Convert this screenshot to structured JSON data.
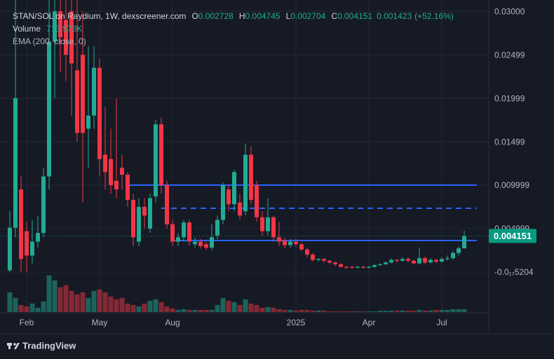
{
  "chart_data": {
    "type": "candlestick",
    "legend": {
      "title": "STAN/SOL on Raydium, 1W, dexscreener.com",
      "ohlc_keys": [
        "O",
        "H",
        "L",
        "C"
      ],
      "volume_title": "Volume",
      "volume_value_label": "713.573K",
      "ema_title": "EMA (200, close, 0)"
    },
    "change": {
      "value": 0.001423,
      "percent_label": "(+52.16%)"
    },
    "branding": "TradingView",
    "categories": [
      null,
      null,
      null,
      "Feb",
      null,
      null,
      null,
      null,
      null,
      null,
      null,
      null,
      null,
      null,
      null,
      null,
      "May",
      null,
      null,
      null,
      null,
      null,
      null,
      null,
      null,
      null,
      null,
      null,
      null,
      "Aug",
      null,
      null,
      null,
      null,
      null,
      null,
      null,
      null,
      null,
      null,
      null,
      null,
      null,
      null,
      null,
      null,
      null,
      null,
      null,
      null,
      null,
      "2025",
      null,
      null,
      null,
      null,
      null,
      null,
      null,
      null,
      null,
      null,
      null,
      null,
      "Apr",
      null,
      null,
      null,
      null,
      null,
      null,
      null,
      null,
      null,
      null,
      null,
      null,
      "Jul",
      null,
      null,
      null,
      null
    ],
    "open": [
      0.0002,
      0.0051,
      0.0095,
      0.0047,
      0.0019,
      0.0035,
      0.0045,
      0.011,
      0.0265,
      0.03,
      0.029,
      0.03,
      0.0232,
      0.025,
      0.0165,
      0.018,
      0.0235,
      0.0135,
      0.013,
      0.0105,
      0.012,
      0.0112,
      0.0083,
      0.0035,
      0.0075,
      0.005,
      0.0087,
      0.017,
      0.01,
      0.0055,
      0.0035,
      0.004,
      0.0057,
      0.0032,
      0.0035,
      0.0032,
      0.0028,
      0.0042,
      0.006,
      0.0095,
      0.0078,
      0.008,
      0.007,
      0.0135,
      0.01,
      0.0063,
      0.0047,
      0.0063,
      0.004,
      0.0036,
      0.0031,
      0.0035,
      0.0032,
      0.0026,
      0.002,
      0.0014,
      0.0015,
      0.0013,
      0.0011,
      0.0009,
      0.0006,
      0.0006,
      0.0005,
      0.0006,
      0.0005,
      0.0006,
      0.0008,
      0.0009,
      0.0011,
      0.0014,
      0.0013,
      0.0015,
      0.0013,
      0.001,
      0.0016,
      0.0011,
      0.0014,
      0.0012,
      0.0015,
      0.0016,
      0.0022,
      0.002728
    ],
    "high": [
      0.007,
      0.0313,
      0.011,
      0.0058,
      0.006,
      0.0065,
      0.012,
      0.0313,
      0.0313,
      0.0313,
      0.0313,
      0.0313,
      0.0313,
      0.03,
      0.026,
      0.026,
      0.0245,
      0.019,
      0.0165,
      0.02,
      0.0135,
      0.0115,
      0.009,
      0.0085,
      0.0085,
      0.009,
      0.0175,
      0.0178,
      0.0105,
      0.006,
      0.0045,
      0.006,
      0.006,
      0.004,
      0.0038,
      0.0035,
      0.0055,
      0.0065,
      0.0103,
      0.01,
      0.0118,
      0.009,
      0.0148,
      0.0145,
      0.0105,
      0.007,
      0.0085,
      0.0065,
      0.0058,
      0.004,
      0.0038,
      0.0038,
      0.0034,
      0.0028,
      0.0022,
      0.0016,
      0.0016,
      0.0014,
      0.0012,
      0.001,
      0.0007,
      0.0007,
      0.0007,
      0.0007,
      0.0007,
      0.0009,
      0.001,
      0.0012,
      0.0016,
      0.0015,
      0.0017,
      0.0017,
      0.0014,
      0.0028,
      0.0018,
      0.0016,
      0.0015,
      0.0017,
      0.0019,
      0.0024,
      0.003,
      0.004745
    ],
    "low": [
      0.0,
      0.004,
      0.0,
      0.0,
      0.001,
      0.0028,
      0.004,
      0.0095,
      0.02,
      0.023,
      0.022,
      0.018,
      0.015,
      0.008,
      0.012,
      0.0165,
      0.011,
      0.0095,
      0.009,
      0.0085,
      0.0095,
      0.0075,
      0.003,
      0.003,
      0.005,
      0.0045,
      0.008,
      0.009,
      0.005,
      0.003,
      0.003,
      0.0035,
      0.003,
      0.0028,
      0.0027,
      0.0025,
      0.0025,
      0.0038,
      0.0055,
      0.007,
      0.007,
      0.006,
      0.0065,
      0.0078,
      0.0058,
      0.0042,
      0.0042,
      0.0035,
      0.003,
      0.0027,
      0.0028,
      0.0029,
      0.0024,
      0.0017,
      0.0012,
      0.0012,
      0.0011,
      0.0009,
      0.0007,
      0.0005,
      0.0004,
      0.0004,
      0.0004,
      0.0004,
      0.0004,
      0.0005,
      0.0007,
      0.0008,
      0.001,
      0.0011,
      0.0012,
      0.0011,
      0.0009,
      0.0009,
      0.0009,
      0.001,
      0.001,
      0.0011,
      0.0013,
      0.0014,
      0.0019,
      0.002704
    ],
    "close": [
      0.0051,
      0.02,
      0.0015,
      0.0019,
      0.0035,
      0.0045,
      0.011,
      0.0265,
      0.03,
      0.027,
      0.025,
      0.024,
      0.016,
      0.016,
      0.018,
      0.0235,
      0.013,
      0.0115,
      0.01,
      0.0095,
      0.0112,
      0.0083,
      0.004,
      0.0075,
      0.0065,
      0.0085,
      0.017,
      0.01,
      0.0055,
      0.0035,
      0.004,
      0.0057,
      0.0035,
      0.0035,
      0.003,
      0.0028,
      0.004,
      0.006,
      0.01,
      0.0078,
      0.0115,
      0.0065,
      0.0135,
      0.0083,
      0.0063,
      0.0047,
      0.0063,
      0.004,
      0.0035,
      0.0031,
      0.0035,
      0.0032,
      0.0026,
      0.002,
      0.0014,
      0.0015,
      0.0013,
      0.0011,
      0.0009,
      0.0006,
      0.0005,
      0.0005,
      0.0006,
      0.0005,
      0.0006,
      0.0008,
      0.0009,
      0.0011,
      0.0014,
      0.0013,
      0.0015,
      0.0013,
      0.001,
      0.0016,
      0.0011,
      0.0014,
      0.0012,
      0.0015,
      0.0016,
      0.0022,
      0.002728,
      0.004151
    ],
    "volume": [
      5040000,
      3600000,
      1800000,
      1440000,
      2160000,
      1080000,
      2700000,
      9360000,
      8100000,
      6300000,
      6840000,
      5400000,
      4500000,
      5040000,
      3600000,
      5400000,
      5760000,
      5040000,
      3960000,
      3240000,
      3600000,
      2160000,
      1800000,
      1440000,
      2160000,
      2880000,
      3240000,
      2520000,
      1440000,
      900000,
      540000,
      720000,
      540000,
      540000,
      540000,
      540000,
      540000,
      1800000,
      3600000,
      2880000,
      2520000,
      1800000,
      3240000,
      2160000,
      1800000,
      1080000,
      1260000,
      1080000,
      720000,
      540000,
      540000,
      360000,
      540000,
      540000,
      360000,
      360000,
      360000,
      180000,
      180000,
      180000,
      180000,
      180000,
      180000,
      180000,
      180000,
      180000,
      360000,
      360000,
      360000,
      360000,
      360000,
      360000,
      360000,
      540000,
      360000,
      360000,
      540000,
      540000,
      540000,
      720000,
      720000,
      713573
    ],
    "up_color": "#22ab94",
    "down_color": "#f23645",
    "volume_up_color": "rgba(34,171,148,0.5)",
    "volume_down_color": "rgba(242,54,69,0.5)",
    "volume_lim": [
      0,
      12000000
    ],
    "ylim": [
      -0.0046,
      0.0313
    ],
    "yticks": [
      {
        "value": 0.03,
        "label": "0.03000"
      },
      0.02499,
      0.01999,
      0.01499,
      0.009999,
      0.004999,
      {
        "value": -5.204e-18,
        "label": "-0.0₁₇5204"
      }
    ],
    "grid": true,
    "hlines": [
      {
        "value": 0.01,
        "from": 21,
        "style": "solid",
        "color": "#2962ff"
      },
      {
        "value": 0.00734,
        "from": 27,
        "style": "dashed",
        "color": "#2962ff"
      },
      {
        "value": 0.00363,
        "from": 29,
        "style": "solid",
        "color": "#2962ff"
      }
    ],
    "price_label_color": "#089981"
  }
}
